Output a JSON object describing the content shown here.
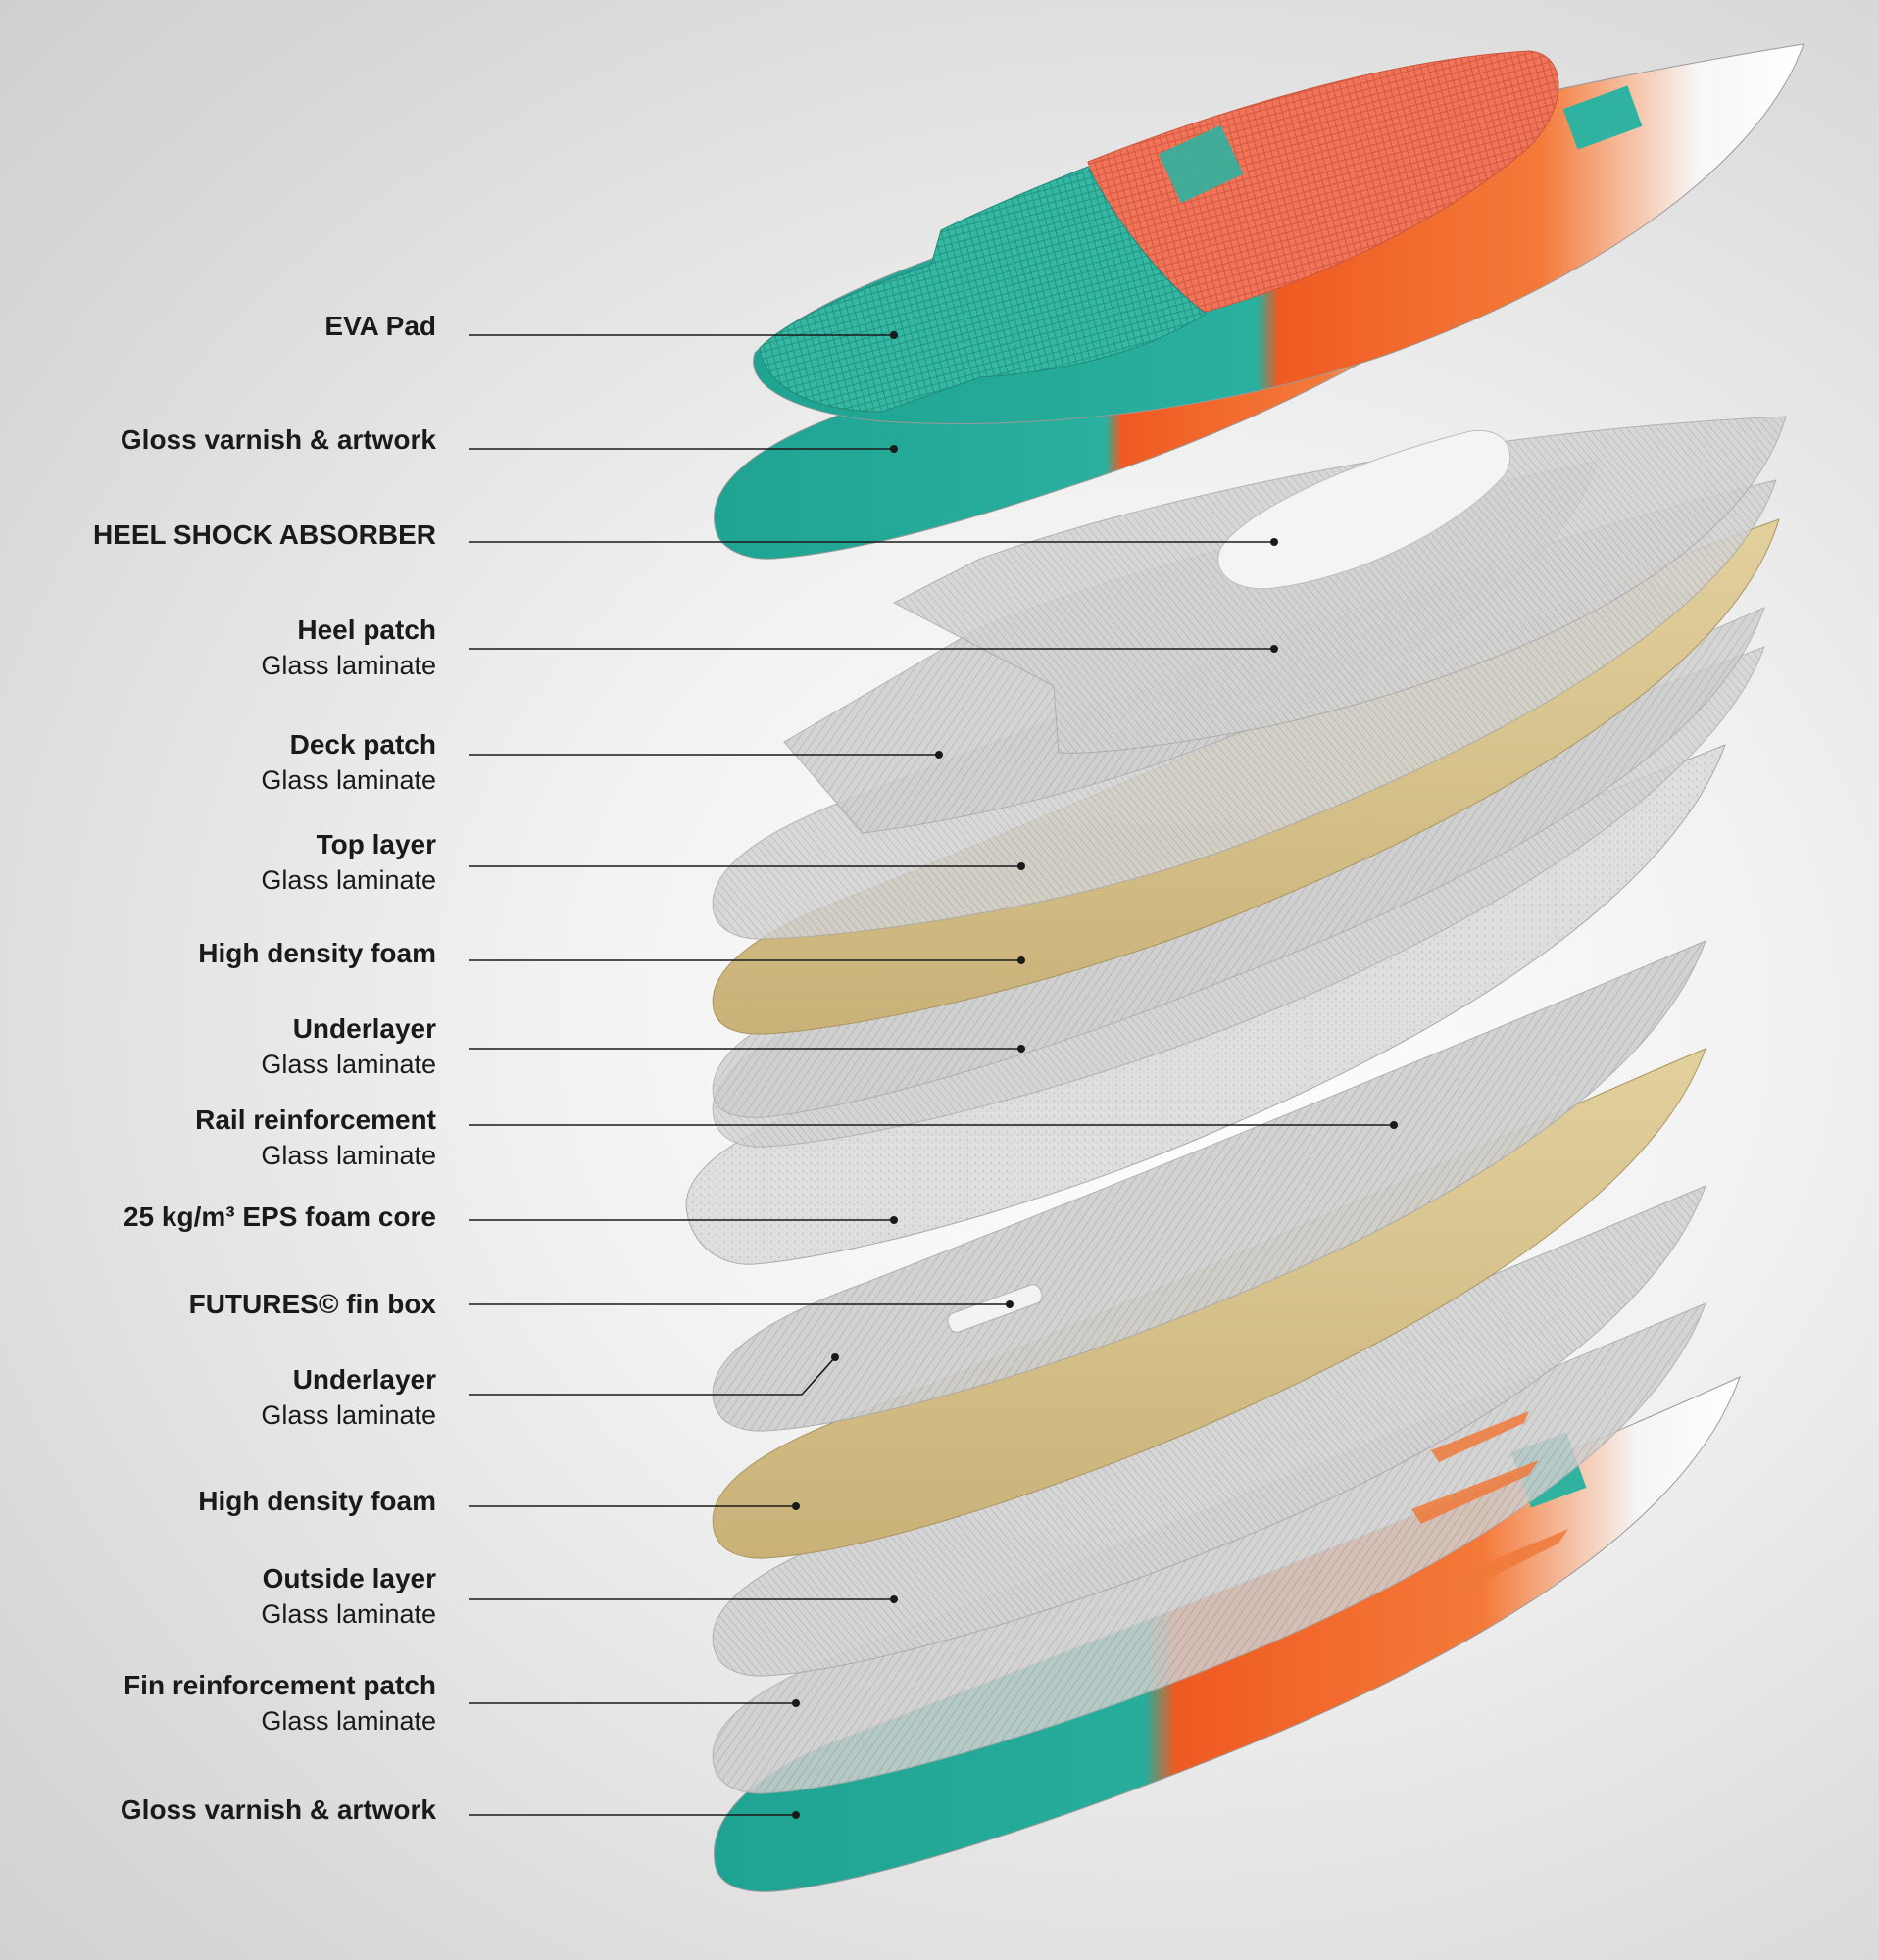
{
  "layers": [
    {
      "title": "EVA Pad",
      "subtitle": ""
    },
    {
      "title": "Gloss varnish & artwork",
      "subtitle": ""
    },
    {
      "title": "HEEL SHOCK ABSORBER",
      "subtitle": ""
    },
    {
      "title": "Heel patch",
      "subtitle": "Glass laminate"
    },
    {
      "title": "Deck patch",
      "subtitle": "Glass laminate"
    },
    {
      "title": "Top layer",
      "subtitle": "Glass laminate"
    },
    {
      "title": "High density foam",
      "subtitle": ""
    },
    {
      "title": "Underlayer",
      "subtitle": "Glass laminate"
    },
    {
      "title": "Rail reinforcement",
      "subtitle": "Glass laminate"
    },
    {
      "title": "25 kg/m³ EPS foam core",
      "subtitle": ""
    },
    {
      "title": "FUTURES© fin box",
      "subtitle": ""
    },
    {
      "title": "Underlayer",
      "subtitle": "Glass laminate"
    },
    {
      "title": "High density foam",
      "subtitle": ""
    },
    {
      "title": "Outside layer",
      "subtitle": "Glass laminate"
    },
    {
      "title": "Fin reinforcement patch",
      "subtitle": "Glass laminate"
    },
    {
      "title": "Gloss varnish & artwork",
      "subtitle": ""
    }
  ],
  "colors": {
    "teal": "#2fb3a0",
    "coral": "#f26d4f",
    "orange": "#f2642a",
    "foam": "#d8c48f",
    "glass": "#c9c9c9",
    "leader": "#1a1a1a"
  }
}
